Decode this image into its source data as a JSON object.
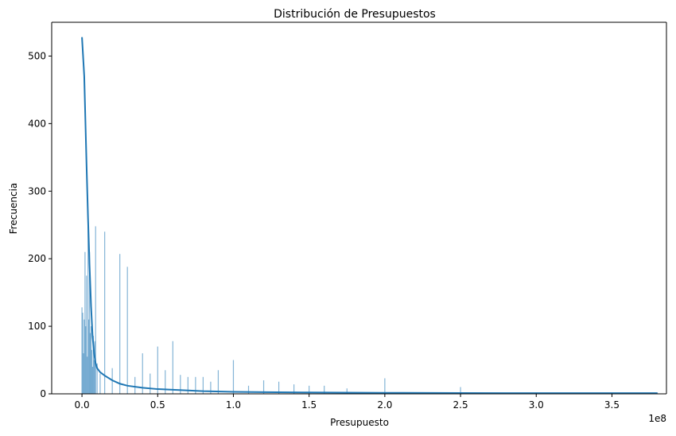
{
  "chart_data": {
    "type": "bar",
    "title": "Distribución de Presupuestos",
    "xlabel": "Presupuesto",
    "ylabel": "Frecuencia",
    "x_offset_text": "1e8",
    "xlim": [
      -0.2,
      3.86
    ],
    "ylim": [
      0,
      550
    ],
    "x_ticks": [
      0.0,
      0.5,
      1.0,
      1.5,
      2.0,
      2.5,
      3.0,
      3.5
    ],
    "x_tick_labels": [
      "0.0",
      "0.5",
      "1.0",
      "1.5",
      "2.0",
      "2.5",
      "3.0",
      "3.5"
    ],
    "y_ticks": [
      0,
      100,
      200,
      300,
      400,
      500
    ],
    "y_tick_labels": [
      "0",
      "100",
      "200",
      "300",
      "400",
      "500"
    ],
    "grid": false,
    "colors": {
      "bars": "#1f77b4",
      "kde": "#1f77b4"
    },
    "histogram": {
      "x": [
        0.0,
        0.005,
        0.01,
        0.015,
        0.02,
        0.025,
        0.03,
        0.035,
        0.04,
        0.045,
        0.05,
        0.055,
        0.06,
        0.065,
        0.07,
        0.075,
        0.08,
        0.085,
        0.09,
        0.1,
        0.12,
        0.15,
        0.2,
        0.25,
        0.3,
        0.35,
        0.4,
        0.45,
        0.5,
        0.55,
        0.6,
        0.65,
        0.7,
        0.75,
        0.8,
        0.85,
        0.9,
        1.0,
        1.1,
        1.2,
        1.3,
        1.4,
        1.5,
        1.6,
        1.75,
        2.0,
        2.5,
        3.0,
        3.8
      ],
      "values": [
        128,
        120,
        60,
        110,
        210,
        100,
        175,
        55,
        265,
        110,
        210,
        90,
        100,
        65,
        40,
        86,
        50,
        78,
        248,
        45,
        30,
        240,
        38,
        207,
        188,
        25,
        60,
        30,
        70,
        35,
        78,
        28,
        25,
        25,
        25,
        18,
        35,
        50,
        12,
        20,
        18,
        14,
        12,
        12,
        8,
        23,
        10,
        2,
        2
      ]
    },
    "kde": {
      "x": [
        0.0,
        0.015,
        0.03,
        0.04,
        0.05,
        0.06,
        0.07,
        0.08,
        0.09,
        0.1,
        0.12,
        0.15,
        0.2,
        0.25,
        0.3,
        0.4,
        0.5,
        0.6,
        0.7,
        0.8,
        1.0,
        1.2,
        1.5,
        2.0,
        2.5,
        3.0,
        3.5,
        3.8
      ],
      "y": [
        528,
        470,
        340,
        260,
        190,
        130,
        85,
        60,
        45,
        38,
        32,
        27,
        20,
        15,
        12,
        9,
        7,
        6,
        5,
        4,
        3,
        2.5,
        2,
        1.5,
        1.2,
        1,
        1,
        1
      ]
    }
  }
}
